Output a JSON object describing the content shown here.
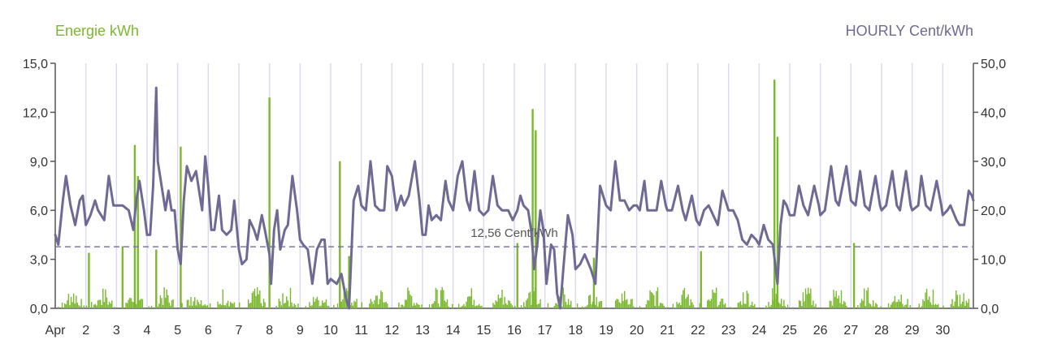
{
  "colors": {
    "energy": "#7cb82f",
    "price": "#6f6a94",
    "grid_day": "#d9dcee",
    "axis": "#555555",
    "ref_line": "#7c77a6"
  },
  "legend": {
    "energy_label": "Energie kWh",
    "price_label": "HOURLY Cent/kWh"
  },
  "chart_data": {
    "type": "bar+line",
    "title": "",
    "x_axis": {
      "type": "date",
      "range": [
        "2024-04-01",
        "2024-05-01"
      ],
      "tick_labels": [
        "Apr",
        "2",
        "3",
        "4",
        "5",
        "6",
        "7",
        "8",
        "9",
        "10",
        "11",
        "12",
        "13",
        "14",
        "15",
        "16",
        "17",
        "18",
        "19",
        "20",
        "21",
        "22",
        "23",
        "24",
        "25",
        "26",
        "27",
        "28",
        "29",
        "30"
      ]
    },
    "y_left": {
      "label": "Energie kWh",
      "min": 0,
      "max": 15,
      "ticks": [
        "0,0",
        "3,0",
        "6,0",
        "9,0",
        "12,0",
        "15,0"
      ],
      "tick_values": [
        0,
        3,
        6,
        9,
        12,
        15
      ]
    },
    "y_right": {
      "label": "HOURLY Cent/kWh",
      "min": 0,
      "max": 50,
      "ticks": [
        "0,0",
        "10,0",
        "20,0",
        "30,0",
        "40,0",
        "50,0"
      ],
      "tick_values": [
        0,
        10,
        20,
        30,
        40,
        50
      ]
    },
    "reference_line": {
      "value": 12.56,
      "axis": "right",
      "label": "12,56 Cent/kWh"
    },
    "grid": "vertical day lines",
    "energy_series": {
      "name": "Energie kWh",
      "type": "bar",
      "notable_peaks": [
        {
          "day": 2.1,
          "value": 3.4
        },
        {
          "day": 3.2,
          "value": 3.8
        },
        {
          "day": 3.6,
          "value": 10.0
        },
        {
          "day": 3.7,
          "value": 8.1
        },
        {
          "day": 4.3,
          "value": 3.6
        },
        {
          "day": 5.1,
          "value": 9.9
        },
        {
          "day": 8.0,
          "value": 12.9
        },
        {
          "day": 10.3,
          "value": 9.0
        },
        {
          "day": 10.6,
          "value": 3.2
        },
        {
          "day": 16.1,
          "value": 4.0
        },
        {
          "day": 16.6,
          "value": 12.2
        },
        {
          "day": 16.7,
          "value": 10.9
        },
        {
          "day": 18.6,
          "value": 3.1
        },
        {
          "day": 22.1,
          "value": 3.5
        },
        {
          "day": 24.5,
          "value": 14.0
        },
        {
          "day": 24.6,
          "value": 10.5
        },
        {
          "day": 27.1,
          "value": 4.0
        }
      ]
    },
    "price_series": {
      "name": "HOURLY Cent/kWh",
      "type": "line",
      "points": [
        [
          1.0,
          15
        ],
        [
          1.1,
          13
        ],
        [
          1.25,
          22
        ],
        [
          1.35,
          27
        ],
        [
          1.5,
          21
        ],
        [
          1.65,
          17
        ],
        [
          1.8,
          22
        ],
        [
          1.9,
          23
        ],
        [
          2.0,
          17
        ],
        [
          2.15,
          19
        ],
        [
          2.3,
          22
        ],
        [
          2.4,
          20
        ],
        [
          2.6,
          18
        ],
        [
          2.75,
          27
        ],
        [
          2.9,
          21
        ],
        [
          3.0,
          21
        ],
        [
          3.2,
          21
        ],
        [
          3.4,
          20
        ],
        [
          3.55,
          16
        ],
        [
          3.65,
          22
        ],
        [
          3.75,
          26
        ],
        [
          3.9,
          20
        ],
        [
          4.0,
          15
        ],
        [
          4.1,
          15
        ],
        [
          4.2,
          25
        ],
        [
          4.3,
          45
        ],
        [
          4.35,
          30
        ],
        [
          4.5,
          24
        ],
        [
          4.6,
          20
        ],
        [
          4.7,
          24
        ],
        [
          4.8,
          20
        ],
        [
          4.9,
          20
        ],
        [
          5.0,
          12
        ],
        [
          5.1,
          9
        ],
        [
          5.2,
          22
        ],
        [
          5.3,
          29
        ],
        [
          5.45,
          26
        ],
        [
          5.6,
          28
        ],
        [
          5.7,
          24
        ],
        [
          5.8,
          20
        ],
        [
          5.9,
          31
        ],
        [
          6.0,
          25
        ],
        [
          6.1,
          16
        ],
        [
          6.2,
          16
        ],
        [
          6.35,
          23
        ],
        [
          6.45,
          16
        ],
        [
          6.6,
          15
        ],
        [
          6.75,
          16
        ],
        [
          6.85,
          22
        ],
        [
          7.0,
          12
        ],
        [
          7.1,
          9
        ],
        [
          7.25,
          10
        ],
        [
          7.35,
          18
        ],
        [
          7.5,
          16
        ],
        [
          7.6,
          14
        ],
        [
          7.75,
          19
        ],
        [
          7.85,
          16
        ],
        [
          8.0,
          11
        ],
        [
          8.05,
          5
        ],
        [
          8.15,
          16
        ],
        [
          8.25,
          20
        ],
        [
          8.35,
          12
        ],
        [
          8.5,
          16
        ],
        [
          8.6,
          17
        ],
        [
          8.75,
          27
        ],
        [
          8.9,
          20
        ],
        [
          9.0,
          14
        ],
        [
          9.1,
          13
        ],
        [
          9.25,
          12
        ],
        [
          9.4,
          5
        ],
        [
          9.55,
          12
        ],
        [
          9.7,
          14
        ],
        [
          9.8,
          14
        ],
        [
          9.9,
          5
        ],
        [
          10.0,
          6
        ],
        [
          10.2,
          5
        ],
        [
          10.35,
          7
        ],
        [
          10.5,
          2
        ],
        [
          10.6,
          0
        ],
        [
          10.75,
          22
        ],
        [
          10.9,
          25
        ],
        [
          11.0,
          21
        ],
        [
          11.15,
          20
        ],
        [
          11.3,
          30
        ],
        [
          11.45,
          21
        ],
        [
          11.6,
          20
        ],
        [
          11.75,
          20
        ],
        [
          11.85,
          29
        ],
        [
          12.0,
          27
        ],
        [
          12.15,
          20
        ],
        [
          12.3,
          23
        ],
        [
          12.4,
          21
        ],
        [
          12.55,
          23
        ],
        [
          12.75,
          30
        ],
        [
          12.9,
          22
        ],
        [
          13.0,
          15
        ],
        [
          13.1,
          15
        ],
        [
          13.2,
          21
        ],
        [
          13.3,
          18
        ],
        [
          13.45,
          19
        ],
        [
          13.6,
          18
        ],
        [
          13.75,
          26
        ],
        [
          13.85,
          22
        ],
        [
          14.0,
          20
        ],
        [
          14.15,
          27
        ],
        [
          14.3,
          30
        ],
        [
          14.45,
          22
        ],
        [
          14.55,
          20
        ],
        [
          14.7,
          28
        ],
        [
          14.85,
          20
        ],
        [
          15.0,
          19
        ],
        [
          15.15,
          20
        ],
        [
          15.3,
          27
        ],
        [
          15.45,
          21
        ],
        [
          15.6,
          20
        ],
        [
          15.8,
          20
        ],
        [
          15.95,
          18
        ],
        [
          16.1,
          20
        ],
        [
          16.2,
          23
        ],
        [
          16.3,
          21
        ],
        [
          16.45,
          20
        ],
        [
          16.55,
          16
        ],
        [
          16.65,
          8
        ],
        [
          16.75,
          13
        ],
        [
          16.85,
          20
        ],
        [
          16.95,
          16
        ],
        [
          17.05,
          5
        ],
        [
          17.2,
          13
        ],
        [
          17.3,
          12
        ],
        [
          17.4,
          3
        ],
        [
          17.5,
          0
        ],
        [
          17.6,
          8
        ],
        [
          17.75,
          19
        ],
        [
          17.9,
          15
        ],
        [
          18.0,
          8
        ],
        [
          18.15,
          9
        ],
        [
          18.3,
          11
        ],
        [
          18.5,
          8
        ],
        [
          18.65,
          5
        ],
        [
          18.8,
          25
        ],
        [
          18.95,
          22
        ],
        [
          19.0,
          21
        ],
        [
          19.15,
          20
        ],
        [
          19.3,
          30
        ],
        [
          19.45,
          22
        ],
        [
          19.6,
          22
        ],
        [
          19.75,
          20
        ],
        [
          19.9,
          21
        ],
        [
          20.0,
          21
        ],
        [
          20.1,
          20
        ],
        [
          20.25,
          26
        ],
        [
          20.35,
          20
        ],
        [
          20.5,
          20
        ],
        [
          20.65,
          20
        ],
        [
          20.8,
          26
        ],
        [
          20.95,
          21
        ],
        [
          21.0,
          20
        ],
        [
          21.15,
          20
        ],
        [
          21.35,
          25
        ],
        [
          21.5,
          20
        ],
        [
          21.6,
          18
        ],
        [
          21.8,
          23
        ],
        [
          21.95,
          18
        ],
        [
          22.05,
          17
        ],
        [
          22.2,
          20
        ],
        [
          22.35,
          21
        ],
        [
          22.5,
          19
        ],
        [
          22.65,
          17
        ],
        [
          22.8,
          24
        ],
        [
          22.95,
          21
        ],
        [
          23.0,
          20
        ],
        [
          23.15,
          20
        ],
        [
          23.3,
          18
        ],
        [
          23.45,
          14
        ],
        [
          23.6,
          13
        ],
        [
          23.75,
          15
        ],
        [
          23.9,
          14
        ],
        [
          24.0,
          13
        ],
        [
          24.15,
          17
        ],
        [
          24.3,
          14
        ],
        [
          24.45,
          13
        ],
        [
          24.6,
          5
        ],
        [
          24.7,
          17
        ],
        [
          24.8,
          22
        ],
        [
          24.9,
          21
        ],
        [
          25.0,
          19
        ],
        [
          25.15,
          19
        ],
        [
          25.3,
          25
        ],
        [
          25.45,
          21
        ],
        [
          25.6,
          19
        ],
        [
          25.8,
          25
        ],
        [
          25.95,
          21
        ],
        [
          26.0,
          19
        ],
        [
          26.15,
          20
        ],
        [
          26.35,
          29
        ],
        [
          26.5,
          22
        ],
        [
          26.6,
          21
        ],
        [
          26.85,
          29
        ],
        [
          27.0,
          22
        ],
        [
          27.15,
          21
        ],
        [
          27.3,
          28
        ],
        [
          27.45,
          21
        ],
        [
          27.6,
          20
        ],
        [
          27.8,
          27
        ],
        [
          27.95,
          21
        ],
        [
          28.0,
          20
        ],
        [
          28.15,
          21
        ],
        [
          28.35,
          28
        ],
        [
          28.5,
          21
        ],
        [
          28.6,
          20
        ],
        [
          28.8,
          28
        ],
        [
          28.95,
          21
        ],
        [
          29.0,
          20
        ],
        [
          29.2,
          21
        ],
        [
          29.3,
          27
        ],
        [
          29.45,
          21
        ],
        [
          29.6,
          20
        ],
        [
          29.8,
          26
        ],
        [
          29.95,
          21
        ],
        [
          30.0,
          19
        ],
        [
          30.15,
          20
        ],
        [
          30.25,
          21
        ],
        [
          30.45,
          18
        ],
        [
          30.55,
          17
        ],
        [
          30.7,
          17
        ],
        [
          30.85,
          24
        ],
        [
          30.95,
          23
        ],
        [
          31.0,
          22
        ]
      ]
    }
  }
}
